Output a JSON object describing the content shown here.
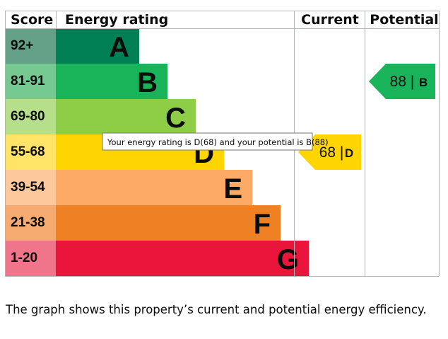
{
  "chart_data": {
    "type": "bar",
    "columns": {
      "score": "Score",
      "rating": "Energy rating",
      "current": "Current",
      "potential": "Potential"
    },
    "bands": [
      {
        "letter": "A",
        "range": "92+",
        "color": "#008054",
        "score_color": "#64a188"
      },
      {
        "letter": "B",
        "range": "81-91",
        "color": "#19b459",
        "score_color": "#77c992"
      },
      {
        "letter": "C",
        "range": "69-80",
        "color": "#8dce46",
        "score_color": "#b6df8b"
      },
      {
        "letter": "D",
        "range": "55-68",
        "color": "#ffd500",
        "score_color": "#ffe468"
      },
      {
        "letter": "E",
        "range": "39-54",
        "color": "#fcaa65",
        "score_color": "#fdc89b"
      },
      {
        "letter": "F",
        "range": "21-38",
        "color": "#ef8023",
        "score_color": "#f5aa6f"
      },
      {
        "letter": "G",
        "range": "1-20",
        "color": "#e9153b",
        "score_color": "#f1758a"
      }
    ],
    "current": {
      "value": 68,
      "letter": "D",
      "color": "#ffd500"
    },
    "potential": {
      "value": 88,
      "letter": "B",
      "color": "#19b459"
    },
    "tooltip": "Your energy rating is D(68) and your potential is B(88)"
  },
  "caption": "The graph shows this property’s current and potential energy efficiency."
}
